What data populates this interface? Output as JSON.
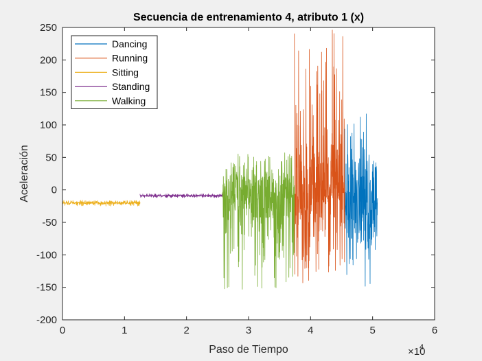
{
  "chart_data": {
    "type": "line",
    "title": "Secuencia de entrenamiento 4, atributo 1 (x)",
    "xlabel": "Paso de Tiempo",
    "ylabel": "Aceleración",
    "xlim": [
      0,
      60000
    ],
    "ylim": [
      -200,
      250
    ],
    "x_exponent_label": "×10",
    "x_exponent_power": "4",
    "x_ticks": [
      0,
      10000,
      20000,
      30000,
      40000,
      50000,
      60000
    ],
    "x_tick_labels": [
      "0",
      "1",
      "2",
      "3",
      "4",
      "5",
      "6"
    ],
    "y_ticks": [
      -200,
      -150,
      -100,
      -50,
      0,
      50,
      100,
      150,
      200,
      250
    ],
    "y_tick_labels": [
      "-200",
      "-150",
      "-100",
      "-50",
      "0",
      "50",
      "100",
      "150",
      "200",
      "250"
    ],
    "legend_position": "top-left",
    "grid": false,
    "series": [
      {
        "name": "Dancing",
        "color": "#0072BD",
        "x_range": [
          45500,
          50800
        ],
        "center": -20,
        "min": -150,
        "max": 118
      },
      {
        "name": "Running",
        "color": "#D95319",
        "x_range": [
          37400,
          45500
        ],
        "center": 0,
        "min": -145,
        "max": 250
      },
      {
        "name": "Sitting",
        "color": "#EDB120",
        "x_range": [
          0,
          12500
        ],
        "center": -20,
        "min": -25,
        "max": -16
      },
      {
        "name": "Standing",
        "color": "#7E2F8E",
        "x_range": [
          12500,
          25800
        ],
        "center": -9,
        "min": -12,
        "max": -6
      },
      {
        "name": "Walking",
        "color": "#77AC30",
        "x_range": [
          25800,
          37400
        ],
        "center": -10,
        "min": -155,
        "max": 58
      }
    ]
  }
}
